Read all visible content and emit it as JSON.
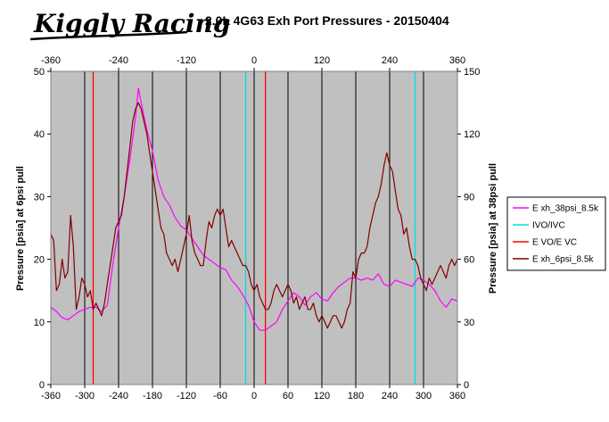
{
  "logo": {
    "text": "Kiggly Racing"
  },
  "chart_data": {
    "type": "line",
    "title": "2.0L 4G63 Exh Port Pressures - 20150404",
    "ylabel": "Pressure [psia] at 6psi pull",
    "y2label": "Pressure [psia] at 38psi pull",
    "xlim": [
      -360,
      360
    ],
    "ylim": [
      0,
      50
    ],
    "y2lim": [
      0,
      150
    ],
    "x_ticks_bottom": [
      -360,
      -300,
      -240,
      -180,
      -120,
      -60,
      0,
      60,
      120,
      180,
      240,
      300,
      360
    ],
    "x_ticks_top": [
      -360,
      -240,
      -120,
      0,
      120,
      240,
      360
    ],
    "y_ticks": [
      0,
      10,
      20,
      30,
      40,
      50
    ],
    "y2_ticks": [
      0,
      30,
      60,
      90,
      120,
      150
    ],
    "grid": "vertical",
    "plot_bg": "#c0c0c0",
    "legend_position": "right",
    "series": [
      {
        "name": "E xh_38psi_8.5k",
        "axis": "right",
        "color": "#ff00ff",
        "x": [
          -360,
          -350,
          -340,
          -330,
          -320,
          -310,
          -300,
          -290,
          -280,
          -270,
          -260,
          -250,
          -240,
          -230,
          -220,
          -210,
          -205,
          -200,
          -190,
          -180,
          -170,
          -160,
          -150,
          -140,
          -130,
          -120,
          -110,
          -100,
          -90,
          -80,
          -70,
          -60,
          -50,
          -40,
          -30,
          -20,
          -10,
          0,
          10,
          20,
          30,
          40,
          50,
          60,
          70,
          80,
          90,
          100,
          110,
          120,
          130,
          140,
          150,
          160,
          170,
          180,
          190,
          200,
          210,
          220,
          230,
          240,
          250,
          260,
          270,
          280,
          290,
          300,
          310,
          320,
          330,
          340,
          350,
          360
        ],
        "y": [
          37,
          35,
          32,
          31,
          33,
          35,
          36,
          37,
          37,
          35,
          38,
          58,
          75,
          90,
          108,
          128,
          142,
          135,
          122,
          112,
          98,
          90,
          86,
          80,
          76,
          74,
          70,
          66,
          62,
          60,
          58,
          56,
          55,
          50,
          47,
          43,
          38,
          30,
          26,
          26,
          28,
          30,
          36,
          40,
          44,
          42,
          38,
          42,
          44,
          41,
          40,
          44,
          47,
          49,
          51,
          51,
          50,
          51,
          50,
          53,
          48,
          47,
          50,
          49,
          48,
          47,
          51,
          50,
          48,
          45,
          40,
          37,
          41,
          40
        ]
      },
      {
        "name": "IVO/IVC",
        "axis": "left",
        "color": "#00e0e0",
        "vlines": [
          -15,
          285
        ]
      },
      {
        "name": "E VO/E VC",
        "axis": "left",
        "color": "#ff0000",
        "vlines": [
          -285,
          20
        ]
      },
      {
        "name": "E xh_6psi_8.5k",
        "axis": "left",
        "color": "#800000",
        "x": [
          -360,
          -355,
          -350,
          -345,
          -340,
          -335,
          -330,
          -325,
          -320,
          -315,
          -310,
          -305,
          -300,
          -295,
          -290,
          -285,
          -280,
          -275,
          -270,
          -265,
          -260,
          -255,
          -250,
          -245,
          -240,
          -235,
          -230,
          -225,
          -220,
          -215,
          -210,
          -205,
          -200,
          -195,
          -190,
          -185,
          -180,
          -175,
          -170,
          -165,
          -160,
          -155,
          -150,
          -145,
          -140,
          -135,
          -130,
          -125,
          -120,
          -115,
          -110,
          -105,
          -100,
          -95,
          -90,
          -85,
          -80,
          -75,
          -70,
          -65,
          -60,
          -55,
          -50,
          -45,
          -40,
          -35,
          -30,
          -25,
          -20,
          -15,
          -10,
          -5,
          0,
          5,
          10,
          15,
          20,
          25,
          30,
          35,
          40,
          45,
          50,
          55,
          60,
          65,
          70,
          75,
          80,
          85,
          90,
          95,
          100,
          105,
          110,
          115,
          120,
          125,
          130,
          135,
          140,
          145,
          150,
          155,
          160,
          165,
          170,
          175,
          180,
          185,
          190,
          195,
          200,
          205,
          210,
          215,
          220,
          225,
          230,
          235,
          240,
          245,
          250,
          255,
          260,
          265,
          270,
          275,
          280,
          285,
          290,
          295,
          300,
          305,
          310,
          315,
          320,
          325,
          330,
          335,
          340,
          345,
          350,
          355,
          360
        ],
        "y": [
          24,
          23,
          15,
          16,
          20,
          17,
          18,
          27,
          22,
          12,
          14,
          17,
          16,
          14,
          15,
          12,
          13,
          12,
          11,
          13,
          16,
          19,
          22,
          25,
          26,
          27,
          30,
          34,
          38,
          42,
          44,
          45,
          44,
          42,
          40,
          37,
          34,
          31,
          28,
          25,
          24,
          21,
          20,
          19,
          20,
          18,
          20,
          22,
          24,
          27,
          23,
          21,
          20,
          19,
          19,
          23,
          26,
          25,
          27,
          28,
          27,
          28,
          25,
          22,
          23,
          22,
          21,
          20,
          19,
          19,
          18,
          16,
          15,
          16,
          14,
          13,
          12,
          12,
          13,
          15,
          16,
          15,
          14,
          15,
          16,
          15,
          13,
          14,
          12,
          13,
          14,
          12,
          12,
          13,
          11,
          10,
          11,
          10,
          9,
          10,
          11,
          11,
          10,
          9,
          10,
          12,
          13,
          18,
          17,
          20,
          21,
          21,
          22,
          25,
          27,
          29,
          30,
          32,
          35,
          37,
          35,
          34,
          31,
          28,
          27,
          24,
          25,
          22,
          20,
          20,
          19,
          17,
          16,
          15,
          17,
          16,
          17,
          18,
          19,
          18,
          17,
          19,
          20,
          19,
          20
        ]
      }
    ]
  }
}
